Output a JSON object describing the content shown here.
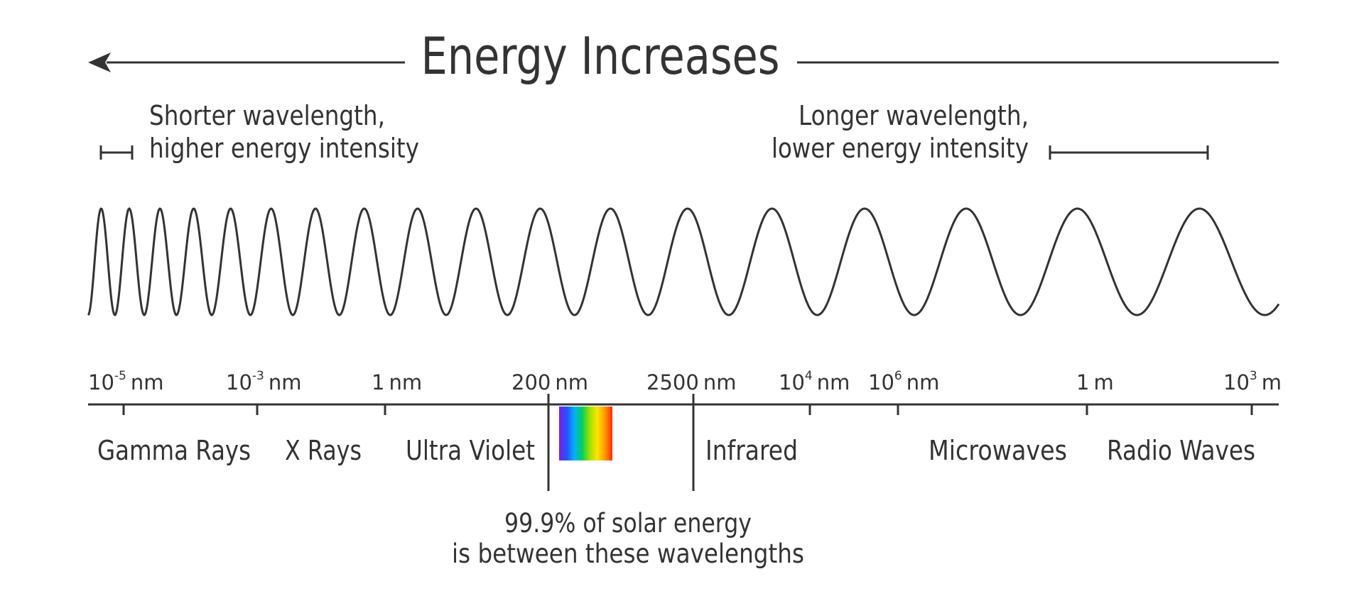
{
  "title": "Energy Increases",
  "short_side": {
    "line1": "Shorter wavelength,",
    "line2": "higher energy intensity"
  },
  "long_side": {
    "line1": "Longer wavelength,",
    "line2": "lower energy intensity"
  },
  "scale_ticks": [
    {
      "base": "10",
      "exp": "-5",
      "unit": "nm"
    },
    {
      "base": "10",
      "exp": "-3",
      "unit": "nm"
    },
    {
      "base": "1",
      "exp": "",
      "unit": "nm"
    },
    {
      "base": "200",
      "exp": "",
      "unit": "nm"
    },
    {
      "base": "2500",
      "exp": "",
      "unit": "nm"
    },
    {
      "base": "10",
      "exp": "4",
      "unit": "nm"
    },
    {
      "base": "10",
      "exp": "6",
      "unit": "nm"
    },
    {
      "base": "1",
      "exp": "",
      "unit": "m"
    },
    {
      "base": "10",
      "exp": "3",
      "unit": "m"
    }
  ],
  "bands": [
    "Gamma Rays",
    "X Rays",
    "Ultra Violet",
    "Infrared",
    "Microwaves",
    "Radio Waves"
  ],
  "visible_spectrum_colors": [
    "#7a1fe0",
    "#2a4fff",
    "#00b0ff",
    "#00d060",
    "#9be000",
    "#ffe600",
    "#ff9a00",
    "#ff2a00"
  ],
  "solar_note": {
    "line1": "99.9% of solar energy",
    "line2": "is between these wavelengths"
  }
}
